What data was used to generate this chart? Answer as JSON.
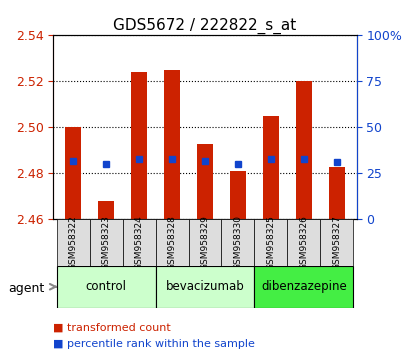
{
  "title": "GDS5672 / 222822_s_at",
  "samples": [
    "GSM958322",
    "GSM958323",
    "GSM958324",
    "GSM958328",
    "GSM958329",
    "GSM958330",
    "GSM958325",
    "GSM958326",
    "GSM958327"
  ],
  "transformed_counts": [
    2.5,
    2.468,
    2.524,
    2.525,
    2.493,
    2.481,
    2.505,
    2.52,
    2.483
  ],
  "percentile_ranks": [
    32,
    30,
    33,
    33,
    32,
    30,
    33,
    33,
    31
  ],
  "baseline": 2.46,
  "ylim_left": [
    2.46,
    2.54
  ],
  "ylim_right": [
    0,
    100
  ],
  "yticks_left": [
    2.46,
    2.48,
    2.5,
    2.52,
    2.54
  ],
  "yticks_right": [
    0,
    25,
    50,
    75,
    100
  ],
  "bar_color": "#cc2200",
  "dot_color": "#1144cc",
  "groups": [
    {
      "label": "control",
      "indices": [
        0,
        1,
        2
      ],
      "color": "#ccffcc"
    },
    {
      "label": "bevacizumab",
      "indices": [
        3,
        4,
        5
      ],
      "color": "#ccffcc"
    },
    {
      "label": "dibenzazepine",
      "indices": [
        6,
        7,
        8
      ],
      "color": "#44ee44"
    }
  ],
  "agent_label": "agent",
  "legend_bar_label": "transformed count",
  "legend_dot_label": "percentile rank within the sample",
  "title_fontsize": 11,
  "tick_fontsize": 9,
  "label_fontsize": 9
}
